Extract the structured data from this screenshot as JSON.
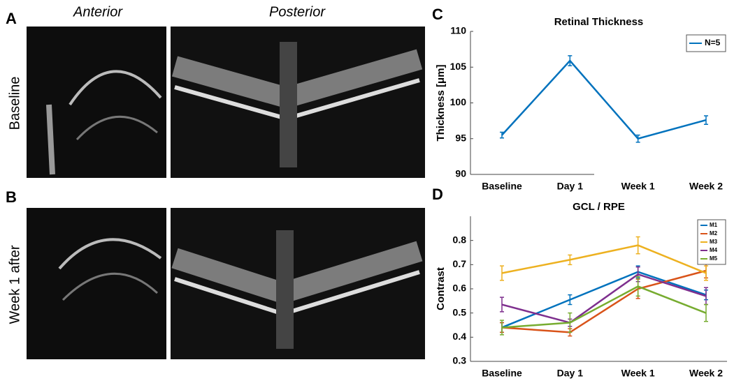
{
  "panel_labels": [
    "A",
    "B",
    "C",
    "D"
  ],
  "image_titles": [
    "Anterior",
    "Posterior"
  ],
  "row_labels": [
    "Baseline",
    "Week 1 after"
  ],
  "chart_data": [
    {
      "type": "line",
      "title": "Retinal Thickness",
      "ylabel": "Thickness [μm]",
      "categories": [
        "Baseline",
        "Day 1",
        "Week 1",
        "Week 2"
      ],
      "ylim": [
        90,
        110
      ],
      "yticks": [
        90,
        95,
        100,
        105,
        110
      ],
      "legend": "northeast",
      "series": [
        {
          "name": "N=5",
          "color": "#0072bd",
          "values": [
            95.5,
            105.9,
            95.0,
            97.6
          ],
          "errors": [
            0.4,
            0.7,
            0.5,
            0.6
          ]
        }
      ]
    },
    {
      "type": "line",
      "title": "GCL / RPE",
      "ylabel": "Contrast",
      "categories": [
        "Baseline",
        "Day 1",
        "Week 1",
        "Week 2"
      ],
      "ylim": [
        0.3,
        0.9
      ],
      "yticks": [
        0.3,
        0.4,
        0.5,
        0.6,
        0.7,
        0.8
      ],
      "legend": "northeast",
      "series": [
        {
          "name": "M1",
          "color": "#0072bd",
          "values": [
            0.44,
            0.555,
            0.67,
            0.575
          ],
          "errors": [
            0.02,
            0.02,
            0.025,
            0.02
          ]
        },
        {
          "name": "M2",
          "color": "#d95319",
          "values": [
            0.44,
            0.42,
            0.6,
            0.675
          ],
          "errors": [
            0.02,
            0.015,
            0.04,
            0.03
          ]
        },
        {
          "name": "M3",
          "color": "#edb120",
          "values": [
            0.665,
            0.72,
            0.78,
            0.665
          ],
          "errors": [
            0.03,
            0.02,
            0.035,
            0.03
          ]
        },
        {
          "name": "M4",
          "color": "#7e2f8e",
          "values": [
            0.535,
            0.46,
            0.66,
            0.57
          ],
          "errors": [
            0.03,
            0.015,
            0.03,
            0.035
          ]
        },
        {
          "name": "M5",
          "color": "#77ac30",
          "values": [
            0.44,
            0.46,
            0.61,
            0.5
          ],
          "errors": [
            0.03,
            0.04,
            0.04,
            0.035
          ]
        }
      ]
    }
  ]
}
